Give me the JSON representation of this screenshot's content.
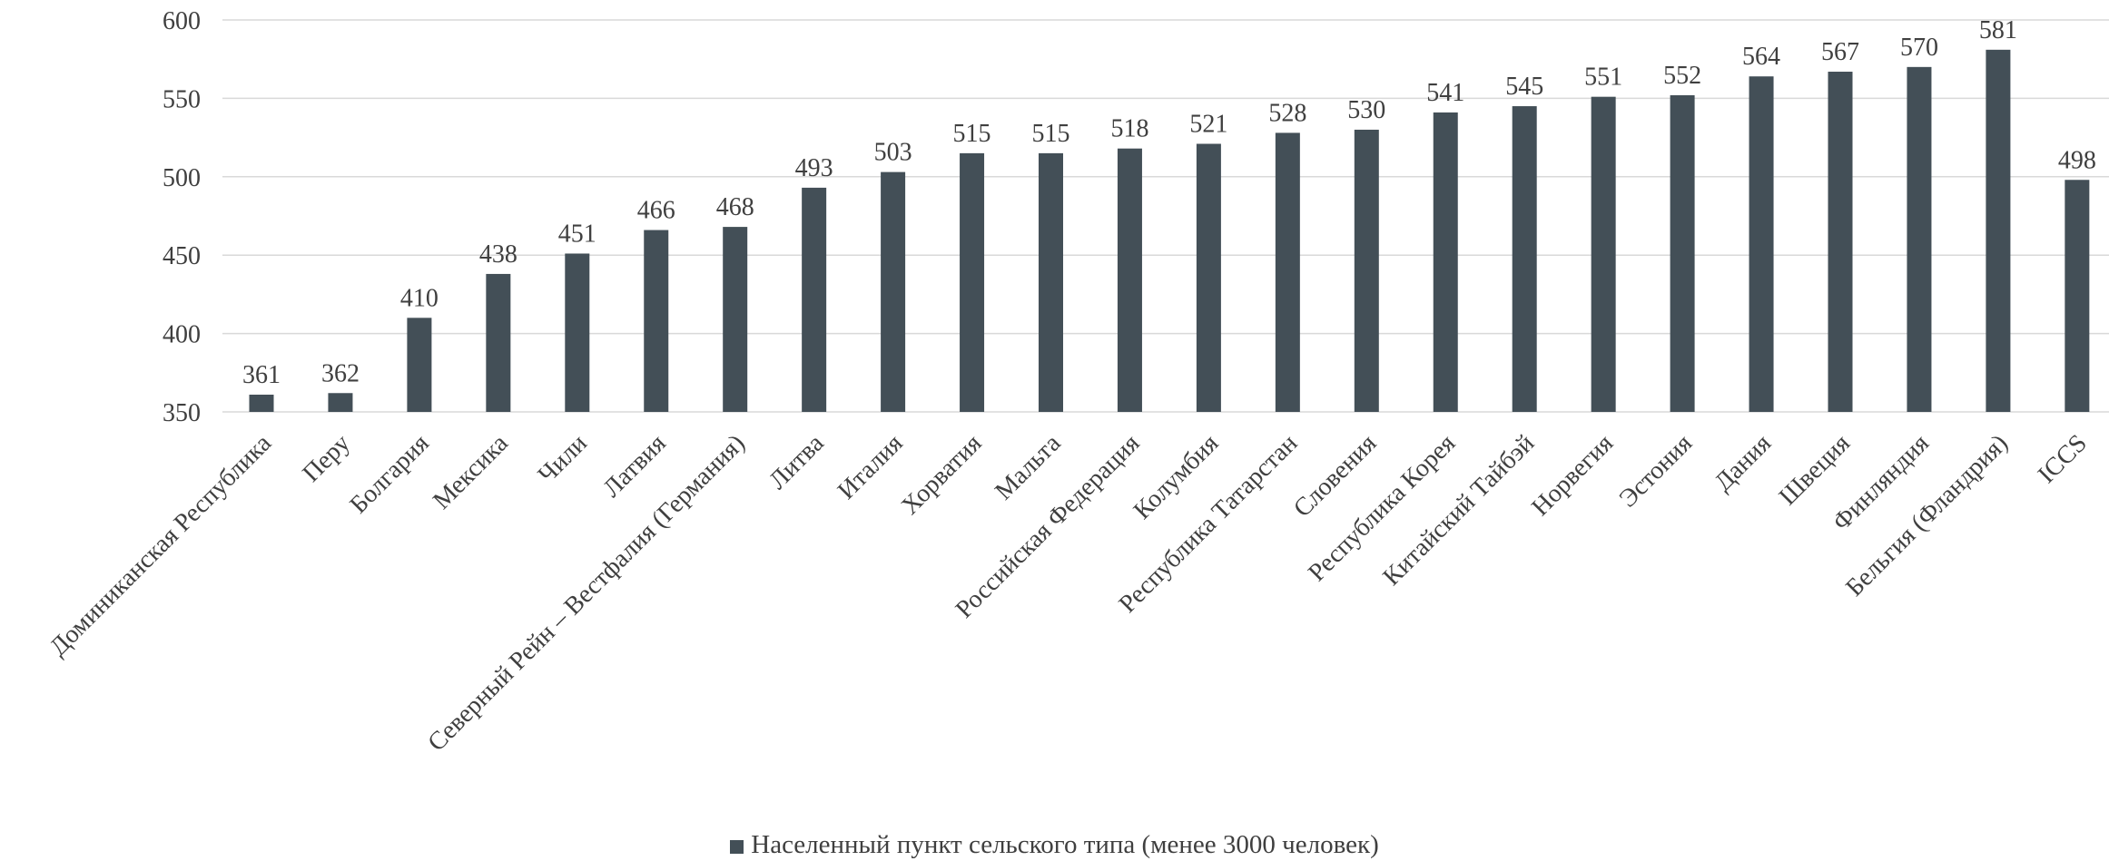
{
  "chart_data": {
    "type": "bar",
    "categories": [
      "Доминиканская Республика",
      "Перу",
      "Болгария",
      "Мексика",
      "Чили",
      "Латвия",
      "Северный Рейн – Вестфалия (Германия)",
      "Литва",
      "Италия",
      "Хорватия",
      "Мальта",
      "Российская Федерация",
      "Колумбия",
      "Республика Татарстан",
      "Словения",
      "Республика Корея",
      "Китайский Тайбэй",
      "Норвегия",
      "Эстония",
      "Дания",
      "Швеция",
      "Финляндия",
      "Бельгия (Фландрия)",
      "ICCS"
    ],
    "series": [
      {
        "name": "Населенный пункт сельского типа (менее 3000 человек)",
        "color": "#434f57",
        "values": [
          361,
          362,
          410,
          438,
          451,
          466,
          468,
          493,
          503,
          515,
          515,
          518,
          521,
          528,
          530,
          541,
          545,
          551,
          552,
          564,
          567,
          570,
          581,
          498
        ]
      }
    ],
    "y_ticks": [
      "350",
      "400",
      "450",
      "500",
      "550",
      "600"
    ],
    "ylim": [
      350,
      600
    ],
    "grid": true,
    "gridline_color": "#d9d9d9",
    "legend_position": "bottom"
  }
}
